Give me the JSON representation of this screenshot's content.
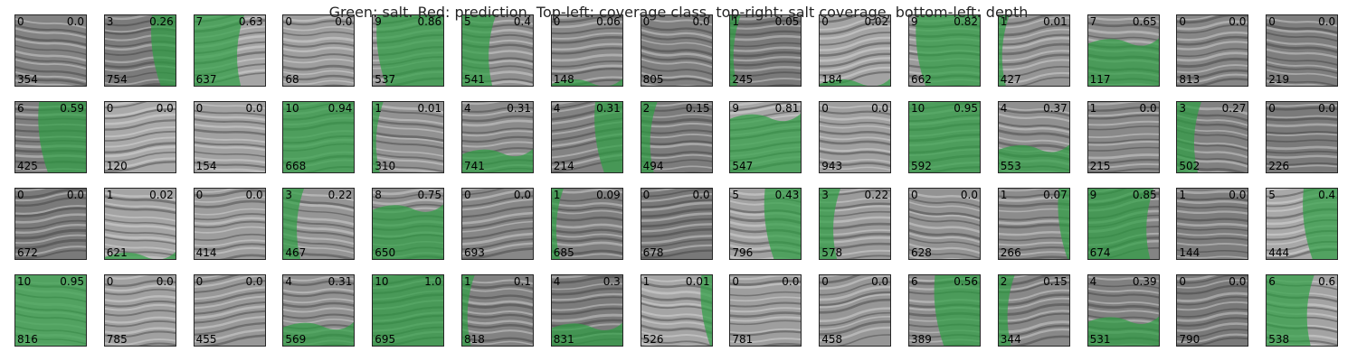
{
  "title": "Green: salt. Red: prediction. Top-left: coverage class, top-right: salt coverage, bottom-left: depth",
  "colors": {
    "salt": "#2ea043",
    "seismic_light": "#b4b4b4",
    "seismic_dark": "#6e6e6e",
    "frame": "#262626"
  },
  "rows": [
    [
      {
        "cls": "0",
        "cov": "0.0",
        "depth": "354"
      },
      {
        "cls": "3",
        "cov": "0.26",
        "depth": "754"
      },
      {
        "cls": "7",
        "cov": "0.63",
        "depth": "637"
      },
      {
        "cls": "0",
        "cov": "0.0",
        "depth": "68"
      },
      {
        "cls": "9",
        "cov": "0.86",
        "depth": "537"
      },
      {
        "cls": "5",
        "cov": "0.4",
        "depth": "541"
      },
      {
        "cls": "0",
        "cov": "0.06",
        "depth": "148"
      },
      {
        "cls": "0",
        "cov": "0.0",
        "depth": "805"
      },
      {
        "cls": "1",
        "cov": "0.05",
        "depth": "245"
      },
      {
        "cls": "0",
        "cov": "0.02",
        "depth": "184"
      },
      {
        "cls": "9",
        "cov": "0.82",
        "depth": "662"
      },
      {
        "cls": "1",
        "cov": "0.01",
        "depth": "427"
      },
      {
        "cls": "7",
        "cov": "0.65",
        "depth": "117"
      },
      {
        "cls": "0",
        "cov": "0.0",
        "depth": "813"
      },
      {
        "cls": "0",
        "cov": "0.0",
        "depth": "219"
      }
    ],
    [
      {
        "cls": "6",
        "cov": "0.59",
        "depth": "425"
      },
      {
        "cls": "0",
        "cov": "0.0",
        "depth": "120"
      },
      {
        "cls": "0",
        "cov": "0.0",
        "depth": "154"
      },
      {
        "cls": "10",
        "cov": "0.94",
        "depth": "668"
      },
      {
        "cls": "1",
        "cov": "0.01",
        "depth": "310"
      },
      {
        "cls": "4",
        "cov": "0.31",
        "depth": "741"
      },
      {
        "cls": "4",
        "cov": "0.31",
        "depth": "214"
      },
      {
        "cls": "2",
        "cov": "0.15",
        "depth": "494"
      },
      {
        "cls": "9",
        "cov": "0.81",
        "depth": "547"
      },
      {
        "cls": "0",
        "cov": "0.0",
        "depth": "943"
      },
      {
        "cls": "10",
        "cov": "0.95",
        "depth": "592"
      },
      {
        "cls": "4",
        "cov": "0.37",
        "depth": "553"
      },
      {
        "cls": "1",
        "cov": "0.0",
        "depth": "215"
      },
      {
        "cls": "3",
        "cov": "0.27",
        "depth": "502"
      },
      {
        "cls": "0",
        "cov": "0.0",
        "depth": "226"
      }
    ],
    [
      {
        "cls": "0",
        "cov": "0.0",
        "depth": "672"
      },
      {
        "cls": "1",
        "cov": "0.02",
        "depth": "621"
      },
      {
        "cls": "0",
        "cov": "0.0",
        "depth": "414"
      },
      {
        "cls": "3",
        "cov": "0.22",
        "depth": "467"
      },
      {
        "cls": "8",
        "cov": "0.75",
        "depth": "650"
      },
      {
        "cls": "0",
        "cov": "0.0",
        "depth": "693"
      },
      {
        "cls": "1",
        "cov": "0.09",
        "depth": "685"
      },
      {
        "cls": "0",
        "cov": "0.0",
        "depth": "678"
      },
      {
        "cls": "5",
        "cov": "0.43",
        "depth": "796"
      },
      {
        "cls": "3",
        "cov": "0.22",
        "depth": "578"
      },
      {
        "cls": "0",
        "cov": "0.0",
        "depth": "628"
      },
      {
        "cls": "1",
        "cov": "0.07",
        "depth": "266"
      },
      {
        "cls": "9",
        "cov": "0.85",
        "depth": "674"
      },
      {
        "cls": "1",
        "cov": "0.0",
        "depth": "144"
      },
      {
        "cls": "5",
        "cov": "0.4",
        "depth": "444"
      }
    ],
    [
      {
        "cls": "10",
        "cov": "0.95",
        "depth": "816"
      },
      {
        "cls": "0",
        "cov": "0.0",
        "depth": "785"
      },
      {
        "cls": "0",
        "cov": "0.0",
        "depth": "455"
      },
      {
        "cls": "4",
        "cov": "0.31",
        "depth": "569"
      },
      {
        "cls": "10",
        "cov": "1.0",
        "depth": "695"
      },
      {
        "cls": "1",
        "cov": "0.1",
        "depth": "818"
      },
      {
        "cls": "4",
        "cov": "0.3",
        "depth": "831"
      },
      {
        "cls": "1",
        "cov": "0.01",
        "depth": "526"
      },
      {
        "cls": "0",
        "cov": "0.0",
        "depth": "781"
      },
      {
        "cls": "0",
        "cov": "0.0",
        "depth": "458"
      },
      {
        "cls": "6",
        "cov": "0.56",
        "depth": "389"
      },
      {
        "cls": "2",
        "cov": "0.15",
        "depth": "344"
      },
      {
        "cls": "4",
        "cov": "0.39",
        "depth": "531"
      },
      {
        "cls": "0",
        "cov": "0.0",
        "depth": "790"
      },
      {
        "cls": "6",
        "cov": "0.6",
        "depth": "538"
      }
    ]
  ]
}
